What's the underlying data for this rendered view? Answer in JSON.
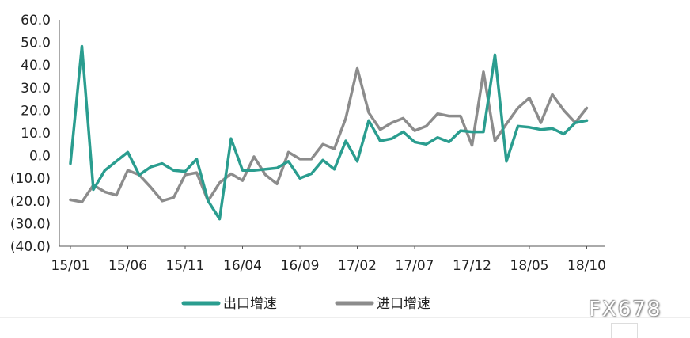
{
  "chart_data": {
    "type": "line",
    "y_ticks": [
      "60.0",
      "50.0",
      "40.0",
      "30.0",
      "20.0",
      "10.0",
      "0.0",
      "(10.0)",
      "(20.0)",
      "(30.0)",
      "(40.0)"
    ],
    "y_values": [
      60,
      50,
      40,
      30,
      20,
      10,
      0,
      -10,
      -20,
      -30,
      -40
    ],
    "ylim": [
      -40,
      60
    ],
    "x_ticks": [
      "15/01",
      "15/06",
      "15/11",
      "16/04",
      "16/09",
      "17/02",
      "17/07",
      "17/12",
      "18/05",
      "18/10"
    ],
    "x_tick_index": [
      0,
      5,
      10,
      15,
      20,
      25,
      30,
      35,
      40,
      45
    ],
    "grid": false,
    "legend_position": "bottom",
    "series": [
      {
        "name": "出口增速",
        "color": "#2a9d8f",
        "values": [
          -3.5,
          48.3,
          -15.0,
          -6.5,
          -2.5,
          1.5,
          -8.5,
          -5.0,
          -3.5,
          -6.5,
          -7.0,
          -1.5,
          -20.0,
          -28.0,
          7.5,
          -6.5,
          -6.5,
          -6.0,
          -5.5,
          -2.5,
          -10.0,
          -8.0,
          -2.0,
          -6.0,
          6.5,
          -2.5,
          15.5,
          6.5,
          7.5,
          10.5,
          6.0,
          5.0,
          8.0,
          6.0,
          11.0,
          10.5,
          10.5,
          44.5,
          -2.5,
          13.0,
          12.5,
          11.5,
          12.0,
          9.5,
          14.5,
          15.5
        ]
      },
      {
        "name": "进口增速",
        "color": "#8c8c8c",
        "values": [
          -19.5,
          -20.5,
          -13.0,
          -16.0,
          -17.5,
          -6.5,
          -8.5,
          -14.0,
          -20.0,
          -18.5,
          -8.5,
          -7.5,
          -20.0,
          -12.0,
          -8.0,
          -11.0,
          -0.5,
          -8.5,
          -12.5,
          1.5,
          -1.5,
          -1.5,
          5.0,
          3.0,
          16.5,
          38.5,
          19.0,
          11.5,
          14.5,
          16.5,
          11.0,
          13.0,
          18.5,
          17.5,
          17.5,
          4.5,
          37.0,
          6.5,
          14.0,
          21.0,
          25.5,
          14.5,
          27.0,
          20.0,
          14.5,
          21.0
        ]
      }
    ]
  },
  "watermark": "FX678"
}
